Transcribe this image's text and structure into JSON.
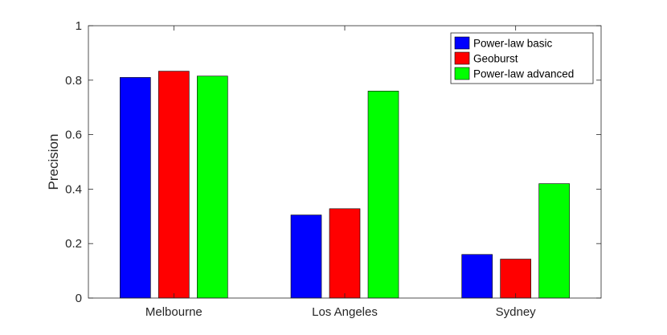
{
  "chart_data": {
    "type": "bar",
    "title": "",
    "xlabel": "",
    "ylabel": "Precision",
    "ylim": [
      0,
      1
    ],
    "yticks": [
      0,
      0.2,
      0.4,
      0.6,
      0.8,
      1
    ],
    "ytick_labels": [
      "0",
      "0.2",
      "0.4",
      "0.6",
      "0.8",
      "1"
    ],
    "categories": [
      "Melbourne",
      "Los Angeles",
      "Sydney"
    ],
    "series": [
      {
        "name": "Power-law basic",
        "color": "#0000ff",
        "values": [
          0.81,
          0.305,
          0.16
        ]
      },
      {
        "name": "Geoburst",
        "color": "#ff0000",
        "values": [
          0.833,
          0.328,
          0.143
        ]
      },
      {
        "name": "Power-law advanced",
        "color": "#00ff00",
        "values": [
          0.815,
          0.76,
          0.42
        ]
      }
    ],
    "grid": false,
    "legend": "top-right"
  }
}
